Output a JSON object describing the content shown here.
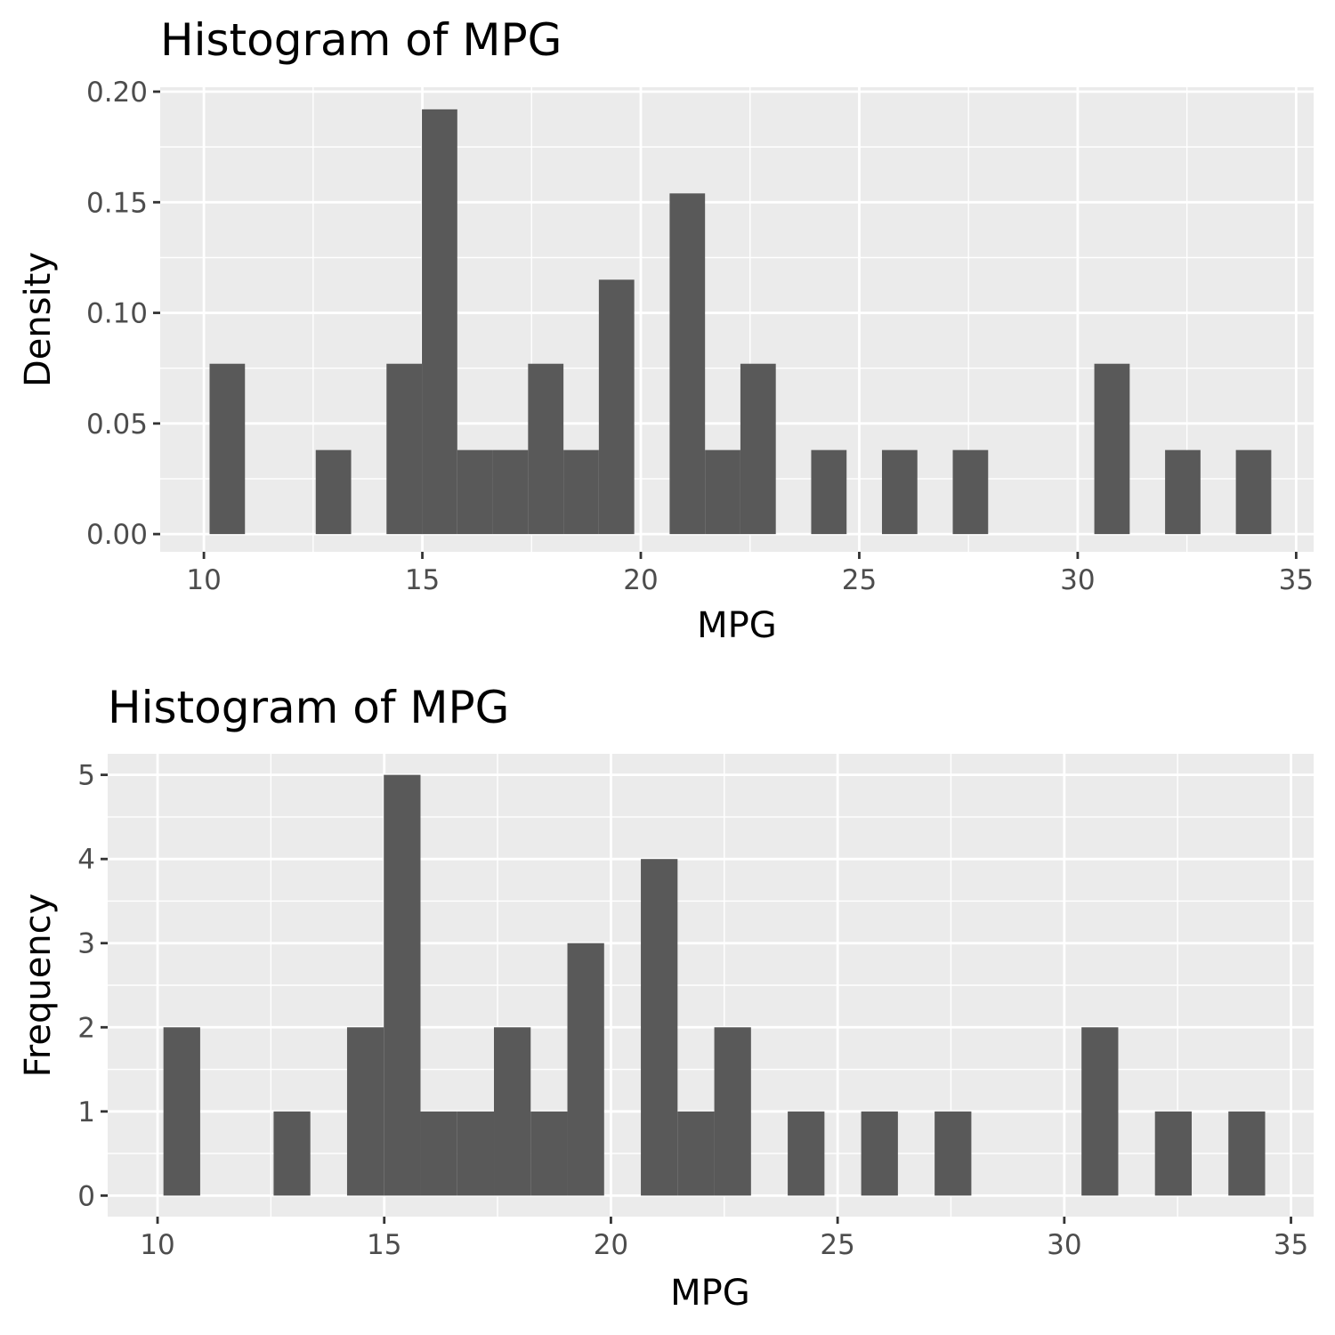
{
  "chart_data": [
    {
      "type": "bar",
      "title": "Histogram of MPG",
      "xlabel": "MPG",
      "ylabel": "Density",
      "xlim": [
        9,
        35.4
      ],
      "ylim": [
        -0.008,
        0.202
      ],
      "x_ticks": [
        "10",
        "15",
        "20",
        "25",
        "30",
        "35"
      ],
      "y_ticks": [
        "0.00",
        "0.05",
        "0.10",
        "0.15",
        "0.20"
      ],
      "x_tick_values": [
        10,
        15,
        20,
        25,
        30,
        35
      ],
      "y_tick_values": [
        0,
        0.05,
        0.1,
        0.15,
        0.2
      ],
      "grid": true,
      "bins": [
        {
          "x0": 10.13,
          "x1": 10.94,
          "value": 0.077
        },
        {
          "x0": 12.56,
          "x1": 13.37,
          "value": 0.038
        },
        {
          "x0": 14.18,
          "x1": 14.99,
          "value": 0.077
        },
        {
          "x0": 14.99,
          "x1": 15.8,
          "value": 0.192
        },
        {
          "x0": 15.8,
          "x1": 16.61,
          "value": 0.038
        },
        {
          "x0": 16.61,
          "x1": 17.42,
          "value": 0.038
        },
        {
          "x0": 17.42,
          "x1": 18.23,
          "value": 0.077
        },
        {
          "x0": 18.23,
          "x1": 19.04,
          "value": 0.038
        },
        {
          "x0": 19.04,
          "x1": 19.85,
          "value": 0.115
        },
        {
          "x0": 20.66,
          "x1": 21.47,
          "value": 0.154
        },
        {
          "x0": 21.47,
          "x1": 22.28,
          "value": 0.038
        },
        {
          "x0": 22.28,
          "x1": 23.09,
          "value": 0.077
        },
        {
          "x0": 23.9,
          "x1": 24.71,
          "value": 0.038
        },
        {
          "x0": 25.52,
          "x1": 26.33,
          "value": 0.038
        },
        {
          "x0": 27.14,
          "x1": 27.95,
          "value": 0.038
        },
        {
          "x0": 30.38,
          "x1": 31.19,
          "value": 0.077
        },
        {
          "x0": 32.0,
          "x1": 32.81,
          "value": 0.038
        },
        {
          "x0": 33.62,
          "x1": 34.43,
          "value": 0.038
        }
      ]
    },
    {
      "type": "bar",
      "title": "Histogram of MPG",
      "xlabel": "MPG",
      "ylabel": "Frequency",
      "xlim": [
        8.9,
        35.5
      ],
      "ylim": [
        -0.25,
        5.25
      ],
      "x_ticks": [
        "10",
        "15",
        "20",
        "25",
        "30",
        "35"
      ],
      "y_ticks": [
        "0",
        "1",
        "2",
        "3",
        "4",
        "5"
      ],
      "x_tick_values": [
        10,
        15,
        20,
        25,
        30,
        35
      ],
      "y_tick_values": [
        0,
        1,
        2,
        3,
        4,
        5
      ],
      "grid": true,
      "bins": [
        {
          "x0": 10.13,
          "x1": 10.94,
          "value": 2
        },
        {
          "x0": 12.56,
          "x1": 13.37,
          "value": 1
        },
        {
          "x0": 14.18,
          "x1": 14.99,
          "value": 2
        },
        {
          "x0": 14.99,
          "x1": 15.8,
          "value": 5
        },
        {
          "x0": 15.8,
          "x1": 16.61,
          "value": 1
        },
        {
          "x0": 16.61,
          "x1": 17.42,
          "value": 1
        },
        {
          "x0": 17.42,
          "x1": 18.23,
          "value": 2
        },
        {
          "x0": 18.23,
          "x1": 19.04,
          "value": 1
        },
        {
          "x0": 19.04,
          "x1": 19.85,
          "value": 3
        },
        {
          "x0": 20.66,
          "x1": 21.47,
          "value": 4
        },
        {
          "x0": 21.47,
          "x1": 22.28,
          "value": 1
        },
        {
          "x0": 22.28,
          "x1": 23.09,
          "value": 2
        },
        {
          "x0": 23.9,
          "x1": 24.71,
          "value": 1
        },
        {
          "x0": 25.52,
          "x1": 26.33,
          "value": 1
        },
        {
          "x0": 27.14,
          "x1": 27.95,
          "value": 1
        },
        {
          "x0": 30.38,
          "x1": 31.19,
          "value": 2
        },
        {
          "x0": 32.0,
          "x1": 32.81,
          "value": 1
        },
        {
          "x0": 33.62,
          "x1": 34.43,
          "value": 1
        }
      ]
    }
  ]
}
